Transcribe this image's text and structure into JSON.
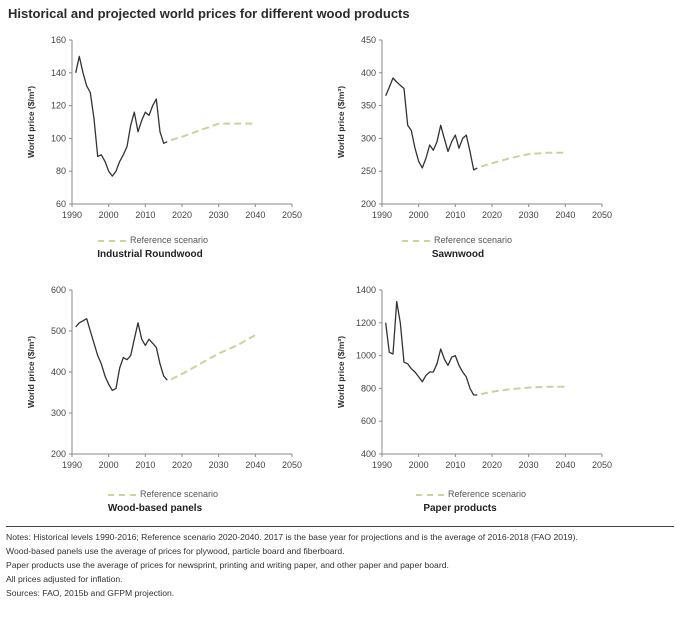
{
  "page": {
    "title": "Historical and projected world prices for different wood products"
  },
  "colors": {
    "historical": "#333333",
    "projection": "#c9d39a"
  },
  "chart_data": [
    {
      "type": "line",
      "subtitle": "Industrial Roundwood",
      "ylabel": "World price ($/m³)",
      "xlim": [
        1990,
        2050
      ],
      "ylim": [
        60,
        160
      ],
      "xticks": [
        1990,
        2000,
        2010,
        2020,
        2030,
        2040,
        2050
      ],
      "yticks": [
        60,
        80,
        100,
        120,
        140,
        160
      ],
      "legend": "Reference scenario",
      "series": [
        {
          "style": "historical",
          "x": [
            1991,
            1992,
            1993,
            1994,
            1995,
            1996,
            1997,
            1998,
            1999,
            2000,
            2001,
            2002,
            2003,
            2004,
            2005,
            2006,
            2007,
            2008,
            2009,
            2010,
            2011,
            2012,
            2013,
            2014,
            2015,
            2016
          ],
          "y": [
            140,
            150,
            140,
            132,
            128,
            112,
            89,
            90,
            86,
            80,
            77,
            80,
            86,
            90,
            95,
            108,
            116,
            104,
            111,
            116,
            114,
            120,
            124,
            104,
            97,
            98
          ]
        },
        {
          "style": "projection",
          "x": [
            2017,
            2020,
            2025,
            2030,
            2035,
            2040
          ],
          "y": [
            99,
            101,
            105,
            109,
            109,
            109
          ]
        }
      ]
    },
    {
      "type": "line",
      "subtitle": "Sawnwood",
      "ylabel": "World price ($/m³)",
      "xlim": [
        1990,
        2050
      ],
      "ylim": [
        200,
        450
      ],
      "xticks": [
        1990,
        2000,
        2010,
        2020,
        2030,
        2040,
        2050
      ],
      "yticks": [
        200,
        250,
        300,
        350,
        400,
        450
      ],
      "legend": "Reference scenario",
      "series": [
        {
          "style": "historical",
          "x": [
            1991,
            1992,
            1993,
            1994,
            1995,
            1996,
            1997,
            1998,
            1999,
            2000,
            2001,
            2002,
            2003,
            2004,
            2005,
            2006,
            2007,
            2008,
            2009,
            2010,
            2011,
            2012,
            2013,
            2014,
            2015,
            2016
          ],
          "y": [
            365,
            378,
            392,
            386,
            381,
            376,
            320,
            312,
            285,
            265,
            255,
            270,
            290,
            282,
            295,
            320,
            300,
            280,
            295,
            305,
            285,
            300,
            305,
            280,
            252,
            255
          ]
        },
        {
          "style": "projection",
          "x": [
            2017,
            2020,
            2025,
            2030,
            2035,
            2040
          ],
          "y": [
            257,
            262,
            270,
            276,
            278,
            278
          ]
        }
      ]
    },
    {
      "type": "line",
      "subtitle": "Wood-based panels",
      "ylabel": "World price ($/m³)",
      "xlim": [
        1990,
        2050
      ],
      "ylim": [
        200,
        600
      ],
      "xticks": [
        1990,
        2000,
        2010,
        2020,
        2030,
        2040,
        2050
      ],
      "yticks": [
        200,
        300,
        400,
        500,
        600
      ],
      "legend": "Reference scenario",
      "series": [
        {
          "style": "historical",
          "x": [
            1991,
            1992,
            1993,
            1994,
            1995,
            1996,
            1997,
            1998,
            1999,
            2000,
            2001,
            2002,
            2003,
            2004,
            2005,
            2006,
            2007,
            2008,
            2009,
            2010,
            2011,
            2012,
            2013,
            2014,
            2015,
            2016
          ],
          "y": [
            510,
            520,
            525,
            530,
            500,
            470,
            440,
            420,
            390,
            370,
            355,
            360,
            410,
            435,
            430,
            440,
            480,
            520,
            480,
            465,
            480,
            470,
            460,
            420,
            390,
            380
          ]
        },
        {
          "style": "projection",
          "x": [
            2017,
            2020,
            2025,
            2030,
            2035,
            2040
          ],
          "y": [
            382,
            395,
            420,
            445,
            465,
            490
          ]
        }
      ]
    },
    {
      "type": "line",
      "subtitle": "Paper products",
      "ylabel": "World price ($/m³)",
      "xlim": [
        1990,
        2050
      ],
      "ylim": [
        400,
        1400
      ],
      "xticks": [
        1990,
        2000,
        2010,
        2020,
        2030,
        2040,
        2050
      ],
      "yticks": [
        400,
        600,
        800,
        1000,
        1200,
        1400
      ],
      "legend": "Reference scenario",
      "series": [
        {
          "style": "historical",
          "x": [
            1991,
            1992,
            1993,
            1994,
            1995,
            1996,
            1997,
            1998,
            1999,
            2000,
            2001,
            2002,
            2003,
            2004,
            2005,
            2006,
            2007,
            2008,
            2009,
            2010,
            2011,
            2012,
            2013,
            2014,
            2015,
            2016
          ],
          "y": [
            1200,
            1020,
            1010,
            1330,
            1200,
            960,
            950,
            920,
            900,
            870,
            840,
            880,
            900,
            900,
            950,
            1040,
            980,
            940,
            990,
            1000,
            940,
            900,
            870,
            800,
            760,
            760
          ]
        },
        {
          "style": "projection",
          "x": [
            2017,
            2020,
            2025,
            2030,
            2035,
            2040
          ],
          "y": [
            765,
            780,
            795,
            805,
            810,
            810
          ]
        }
      ]
    }
  ],
  "notes": [
    "Notes: Historical levels 1990-2016; Reference scenario 2020-2040. 2017 is the base year for projections and is the average of 2016-2018 (FAO 2019).",
    "Wood-based panels use the average of prices for plywood, particle board and fiberboard.",
    "Paper products use the average of prices for newsprint, printing and writing paper, and other paper and paper board.",
    "All prices adjusted for inflation.",
    "Sources: FAO, 2015b and GFPM projection."
  ]
}
